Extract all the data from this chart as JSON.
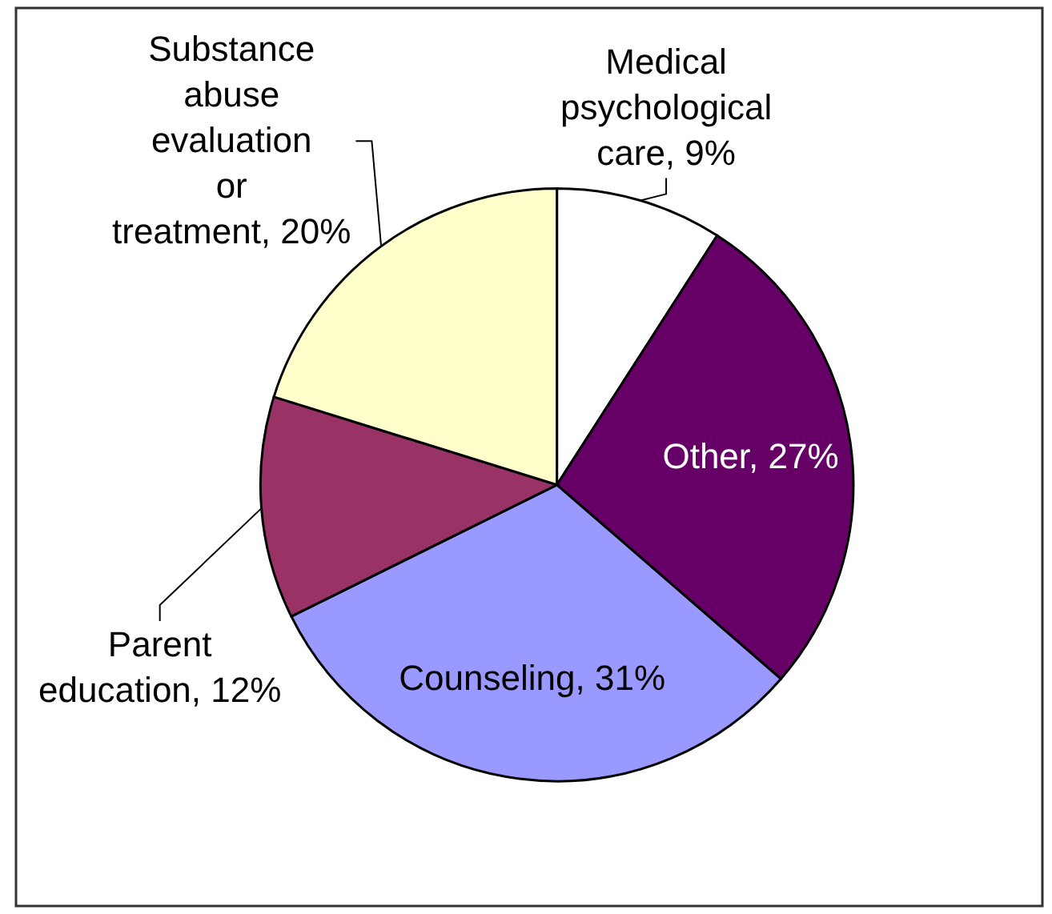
{
  "chart_data": {
    "type": "pie",
    "categories": [
      "Medical psychological care",
      "Other",
      "Counseling",
      "Parent education",
      "Substance abuse evaluation or treatment"
    ],
    "values": [
      9,
      27,
      31,
      12,
      20
    ],
    "value_labels": [
      "9%",
      "27%",
      "31%",
      "12%",
      "20%"
    ],
    "colors": [
      "#ffffff",
      "#660066",
      "#9999ff",
      "#993366",
      "#ffffcc"
    ],
    "legend": false
  }
}
